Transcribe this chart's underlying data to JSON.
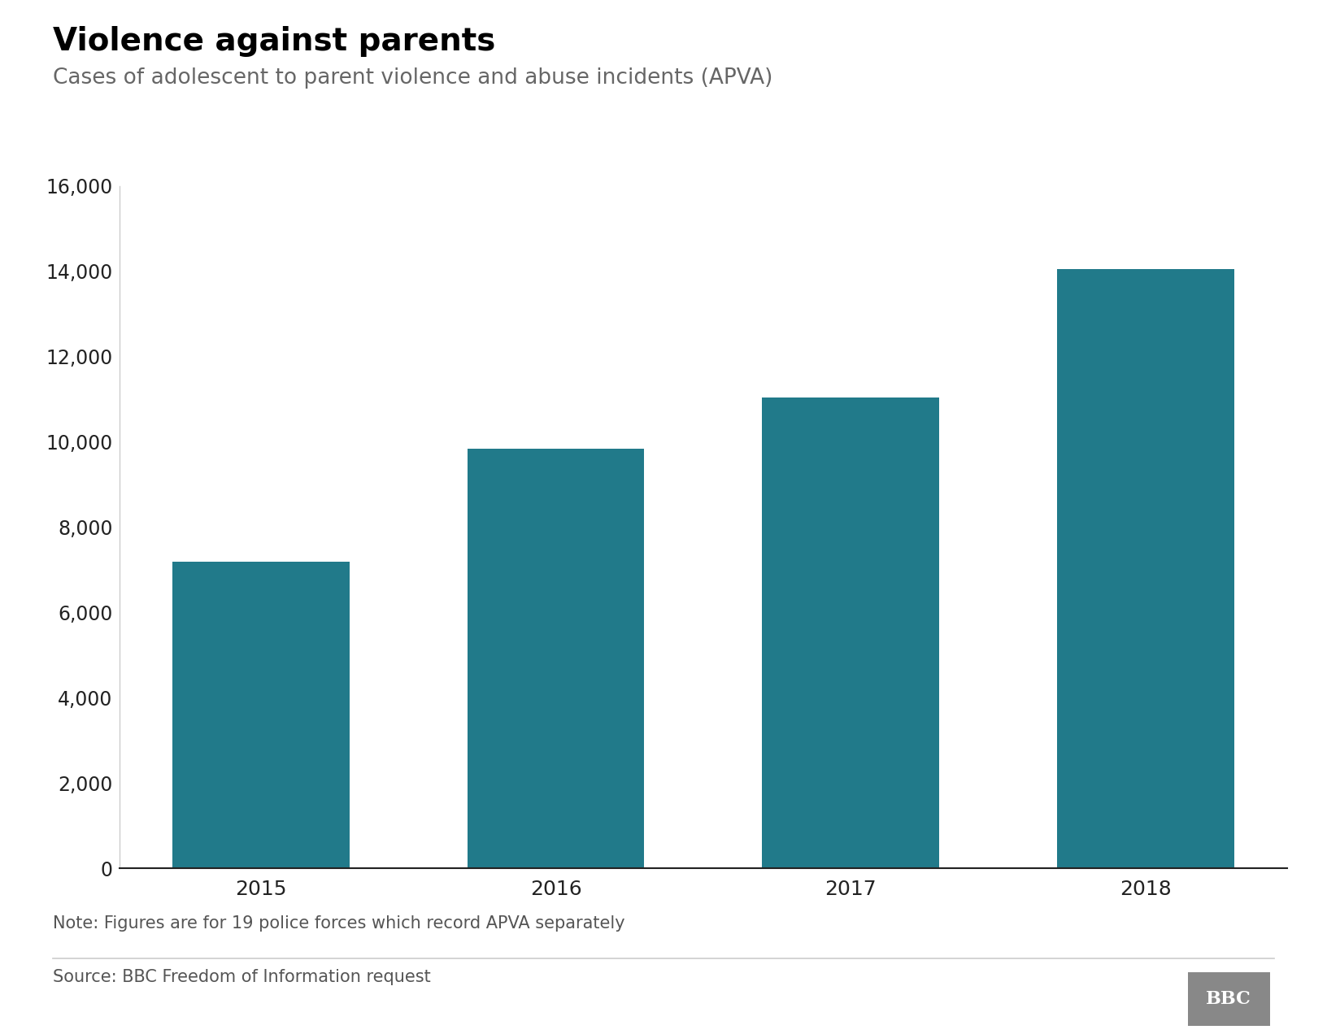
{
  "title": "Violence against parents",
  "subtitle": "Cases of adolescent to parent violence and abuse incidents (APVA)",
  "note": "Note: Figures are for 19 police forces which record APVA separately",
  "source": "Source: BBC Freedom of Information request",
  "categories": [
    "2015",
    "2016",
    "2017",
    "2018"
  ],
  "values": [
    7200,
    9850,
    11050,
    14050
  ],
  "bar_color": "#217a8a",
  "background_color": "#ffffff",
  "ylim": [
    0,
    16000
  ],
  "yticks": [
    0,
    2000,
    4000,
    6000,
    8000,
    10000,
    12000,
    14000,
    16000
  ],
  "title_fontsize": 28,
  "subtitle_fontsize": 19,
  "tick_fontsize": 17,
  "note_fontsize": 15,
  "source_fontsize": 15
}
